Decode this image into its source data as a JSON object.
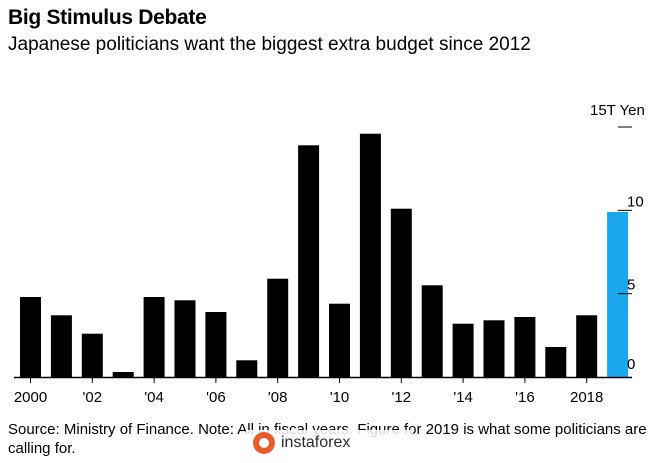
{
  "header": {
    "title": "Big Stimulus Debate",
    "subtitle": "Japanese politicians want the biggest extra budget since 2012"
  },
  "footer": {
    "source": "Source: Ministry of Finance. Note: All in fiscal years. Figure for 2019 is what some politicians are calling for."
  },
  "watermark": {
    "text": "instaforex"
  },
  "colors": {
    "bar": "#000000",
    "highlight": "#1aa7ec",
    "axis": "#000000"
  },
  "chart_data": {
    "type": "bar",
    "unit_label": "15T Yen",
    "categories": [
      "2000",
      "2001",
      "2002",
      "2003",
      "2004",
      "2005",
      "2006",
      "2007",
      "2008",
      "2009",
      "2010",
      "2011",
      "2012",
      "2013",
      "2014",
      "2015",
      "2016",
      "2017",
      "2018",
      "2019"
    ],
    "values": [
      4.8,
      3.7,
      2.6,
      0.3,
      4.8,
      4.6,
      3.9,
      1.0,
      5.9,
      13.9,
      4.4,
      14.6,
      10.1,
      5.5,
      3.2,
      3.4,
      3.6,
      1.8,
      3.7,
      9.9
    ],
    "highlight_index": 19,
    "x_tick_labels": [
      "2000",
      "'02",
      "'04",
      "'06",
      "'08",
      "'10",
      "'12",
      "'14",
      "'16",
      "2018"
    ],
    "y_ticks": [
      0,
      5,
      10
    ],
    "ylim": [
      0,
      15
    ],
    "grid": false
  }
}
